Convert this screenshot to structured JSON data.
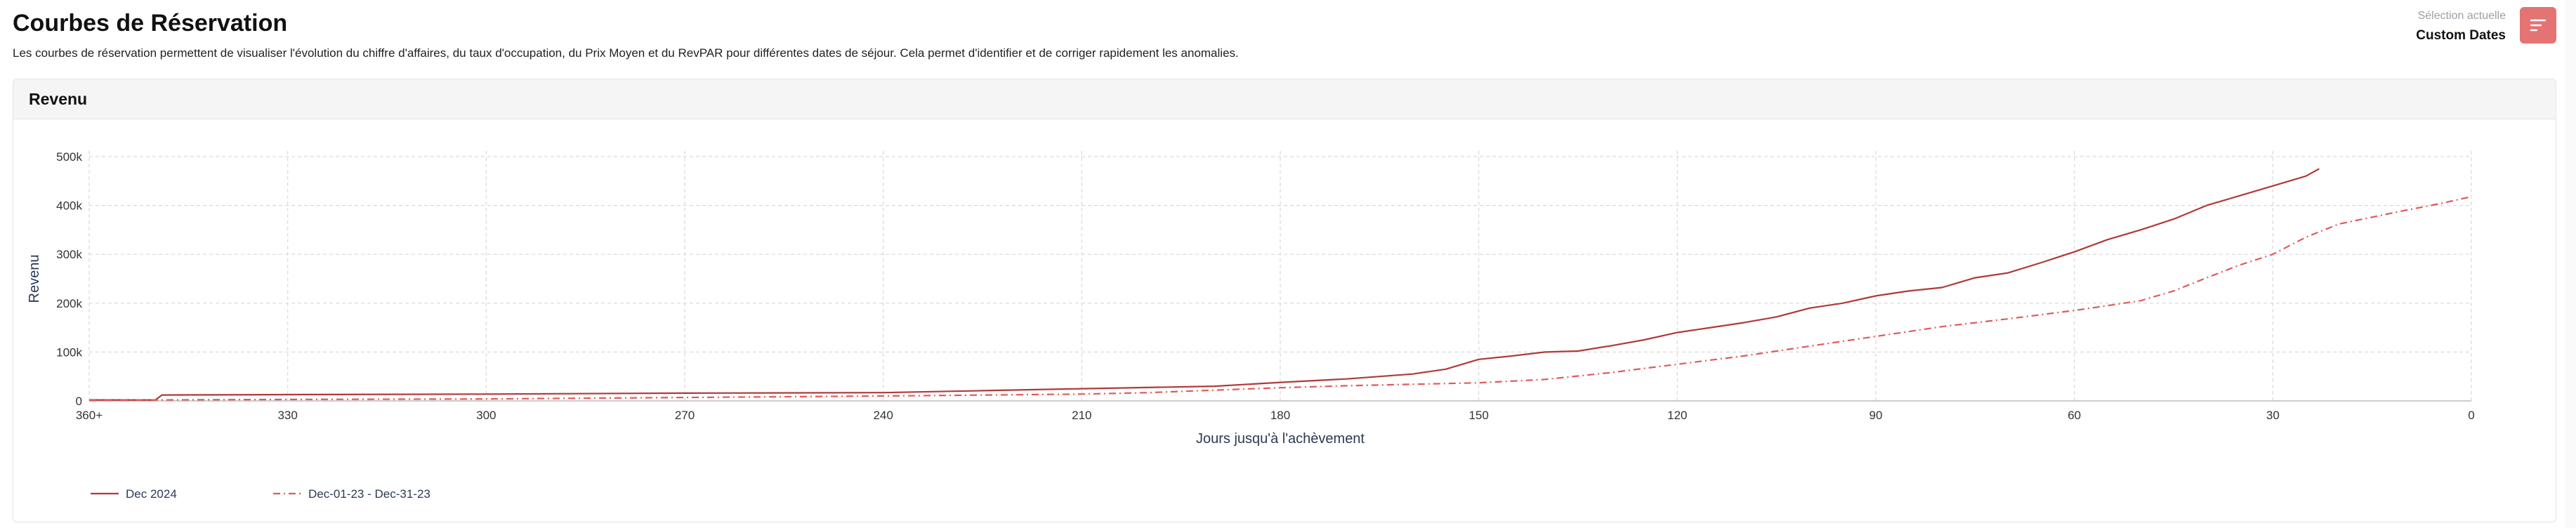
{
  "page": {
    "title": "Courbes de Réservation",
    "description": "Les courbes de réservation permettent de visualiser l'évolution du chiffre d'affaires, du taux d'occupation, du Prix Moyen et du RevPAR pour différentes dates de séjour. Cela permet d'identifier et de corriger rapidement les anomalies."
  },
  "selection": {
    "label": "Sélection actuelle",
    "value": "Custom Dates"
  },
  "filter_button": {
    "icon": "filter-lines-icon",
    "color": "#e57373"
  },
  "card": {
    "title": "Revenu"
  },
  "chart_data": {
    "type": "line",
    "title": "Revenu",
    "xlabel": "Jours jusqu'à l'achèvement",
    "ylabel": "Revenu",
    "xlim": [
      360,
      0
    ],
    "x_reversed": true,
    "x_ticks": [
      {
        "value": 360,
        "label": "360+"
      },
      {
        "value": 330,
        "label": "330"
      },
      {
        "value": 300,
        "label": "300"
      },
      {
        "value": 270,
        "label": "270"
      },
      {
        "value": 240,
        "label": "240"
      },
      {
        "value": 210,
        "label": "210"
      },
      {
        "value": 180,
        "label": "180"
      },
      {
        "value": 150,
        "label": "150"
      },
      {
        "value": 120,
        "label": "120"
      },
      {
        "value": 90,
        "label": "90"
      },
      {
        "value": 60,
        "label": "60"
      },
      {
        "value": 30,
        "label": "30"
      },
      {
        "value": 0,
        "label": "0"
      }
    ],
    "ylim": [
      0,
      500000
    ],
    "y_ticks": [
      {
        "value": 0,
        "label": "0"
      },
      {
        "value": 100000,
        "label": "100k"
      },
      {
        "value": 200000,
        "label": "200k"
      },
      {
        "value": 300000,
        "label": "300k"
      },
      {
        "value": 400000,
        "label": "400k"
      },
      {
        "value": 500000,
        "label": "500k"
      }
    ],
    "grid": true,
    "legend_position": "bottom-left",
    "series": [
      {
        "name": "Dec 2024",
        "color": "#b03a3a",
        "dash": "solid",
        "x": [
          360,
          350,
          349,
          330,
          300,
          270,
          240,
          225,
          210,
          190,
          180,
          170,
          160,
          155,
          150,
          145,
          140,
          135,
          130,
          125,
          120,
          115,
          110,
          105,
          100,
          95,
          90,
          85,
          80,
          75,
          70,
          65,
          60,
          55,
          50,
          45,
          40,
          35,
          30,
          25,
          23
        ],
        "y": [
          2000,
          2000,
          12000,
          13000,
          14000,
          16000,
          17000,
          21000,
          25000,
          30000,
          38000,
          45000,
          55000,
          65000,
          85000,
          92000,
          100000,
          102000,
          113000,
          125000,
          140000,
          150000,
          160000,
          172000,
          190000,
          200000,
          215000,
          225000,
          232000,
          252000,
          262000,
          283000,
          305000,
          330000,
          350000,
          372000,
          400000,
          420000,
          440000,
          460000,
          475000
        ]
      },
      {
        "name": "Dec-01-23 - Dec-31-23",
        "color": "#e05a5a",
        "dash": "dashdot",
        "x": [
          360,
          350,
          330,
          300,
          270,
          240,
          210,
          200,
          190,
          180,
          170,
          160,
          150,
          140,
          130,
          120,
          110,
          100,
          90,
          80,
          70,
          60,
          55,
          50,
          45,
          40,
          35,
          30,
          25,
          20,
          10,
          5,
          0
        ],
        "y": [
          1000,
          2000,
          3000,
          4000,
          7000,
          10000,
          14000,
          17000,
          22000,
          27000,
          31000,
          34000,
          37000,
          44000,
          58000,
          75000,
          92000,
          112000,
          132000,
          152000,
          168000,
          185000,
          195000,
          205000,
          225000,
          252000,
          278000,
          300000,
          335000,
          362000,
          390000,
          403000,
          418000
        ]
      }
    ]
  }
}
